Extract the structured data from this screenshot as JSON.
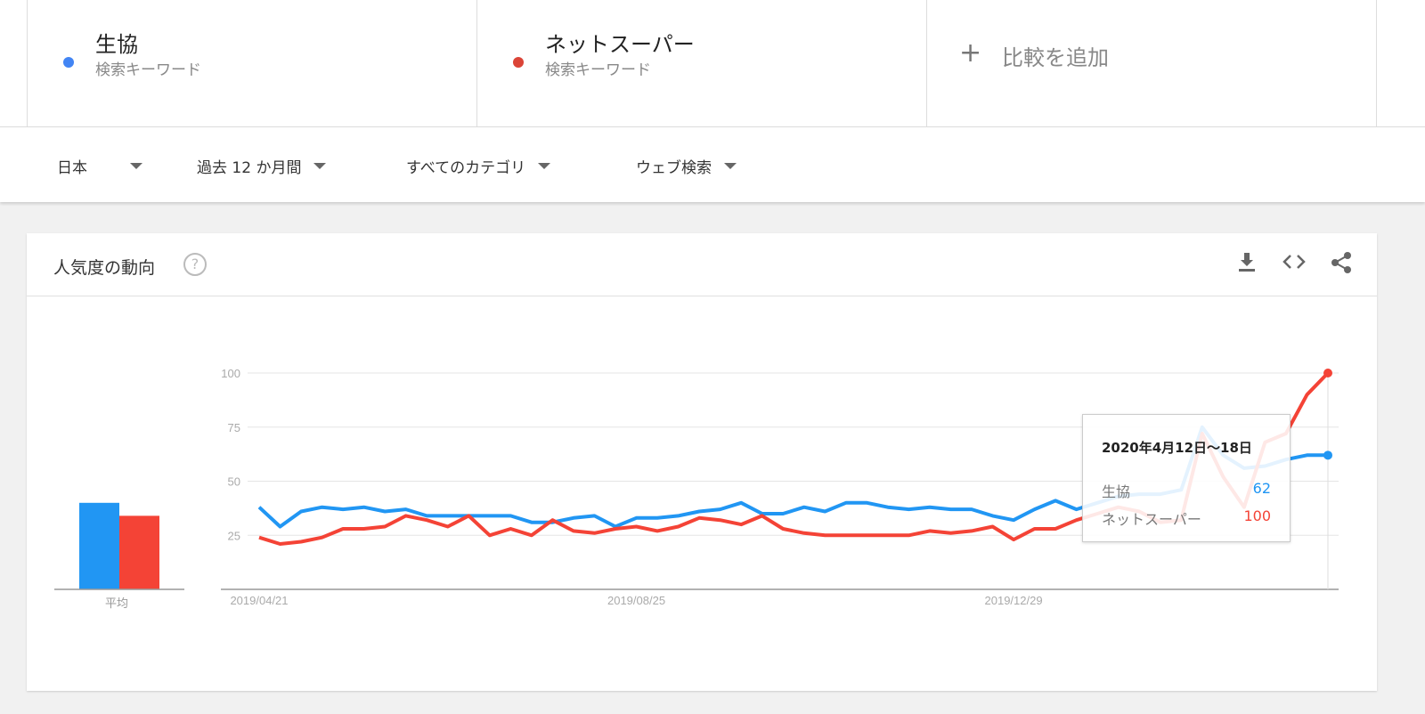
{
  "terms": [
    {
      "name": "生協",
      "type": "検索キーワード",
      "color": "#4285f4"
    },
    {
      "name": "ネットスーパー",
      "type": "検索キーワード",
      "color": "#db4437"
    }
  ],
  "add_compare": "比較を追加",
  "filters": {
    "region": "日本",
    "period": "過去 12 か月間",
    "category": "すべてのカテゴリ",
    "search_type": "ウェブ検索"
  },
  "card": {
    "title": "人気度の動向",
    "icons": [
      "help-icon",
      "download-icon",
      "embed-icon",
      "share-icon"
    ]
  },
  "tooltip": {
    "date": "2020年4月12日〜18日",
    "rows": [
      {
        "name": "生協",
        "value": "62"
      },
      {
        "name": "ネットスーパー",
        "value": "100"
      }
    ]
  },
  "average_label": "平均",
  "chart_data": {
    "type": "line",
    "title": "",
    "y_ticks": [
      "100",
      "75",
      "50",
      "25"
    ],
    "ylim": [
      0,
      100
    ],
    "x_tick_labels": [
      "2019/04/21",
      "2019/08/25",
      "2019/12/29"
    ],
    "grid": true,
    "x": [
      "2019/04/21",
      "2019/04/28",
      "2019/05/05",
      "2019/05/12",
      "2019/05/19",
      "2019/05/26",
      "2019/06/02",
      "2019/06/09",
      "2019/06/16",
      "2019/06/23",
      "2019/06/30",
      "2019/07/07",
      "2019/07/14",
      "2019/07/21",
      "2019/07/28",
      "2019/08/04",
      "2019/08/11",
      "2019/08/18",
      "2019/08/25",
      "2019/09/01",
      "2019/09/08",
      "2019/09/15",
      "2019/09/22",
      "2019/09/29",
      "2019/10/06",
      "2019/10/13",
      "2019/10/20",
      "2019/10/27",
      "2019/11/03",
      "2019/11/10",
      "2019/11/17",
      "2019/11/24",
      "2019/12/01",
      "2019/12/08",
      "2019/12/15",
      "2019/12/22",
      "2019/12/29",
      "2020/01/05",
      "2020/01/12",
      "2020/01/19",
      "2020/01/26",
      "2020/02/02",
      "2020/02/09",
      "2020/02/16",
      "2020/02/23",
      "2020/03/01",
      "2020/03/08",
      "2020/03/15",
      "2020/03/22",
      "2020/03/29",
      "2020/04/05",
      "2020/04/12"
    ],
    "series": [
      {
        "name": "生協",
        "color": "#2196f3",
        "average": 40,
        "values": [
          38,
          29,
          36,
          38,
          37,
          38,
          36,
          37,
          34,
          34,
          34,
          34,
          34,
          31,
          31,
          33,
          34,
          29,
          33,
          33,
          34,
          36,
          37,
          40,
          35,
          35,
          38,
          36,
          40,
          40,
          38,
          37,
          38,
          37,
          37,
          34,
          32,
          37,
          41,
          37,
          40,
          43,
          44,
          44,
          46,
          75,
          62,
          56,
          57,
          60,
          62,
          62
        ]
      },
      {
        "name": "ネットスーパー",
        "color": "#f44336",
        "average": 34,
        "values": [
          24,
          21,
          22,
          24,
          28,
          28,
          29,
          34,
          32,
          29,
          34,
          25,
          28,
          25,
          32,
          27,
          26,
          28,
          29,
          27,
          29,
          33,
          32,
          30,
          34,
          28,
          26,
          25,
          25,
          25,
          25,
          25,
          27,
          26,
          27,
          29,
          23,
          28,
          28,
          32,
          35,
          38,
          36,
          31,
          32,
          72,
          52,
          38,
          68,
          72,
          90,
          100
        ]
      }
    ]
  }
}
